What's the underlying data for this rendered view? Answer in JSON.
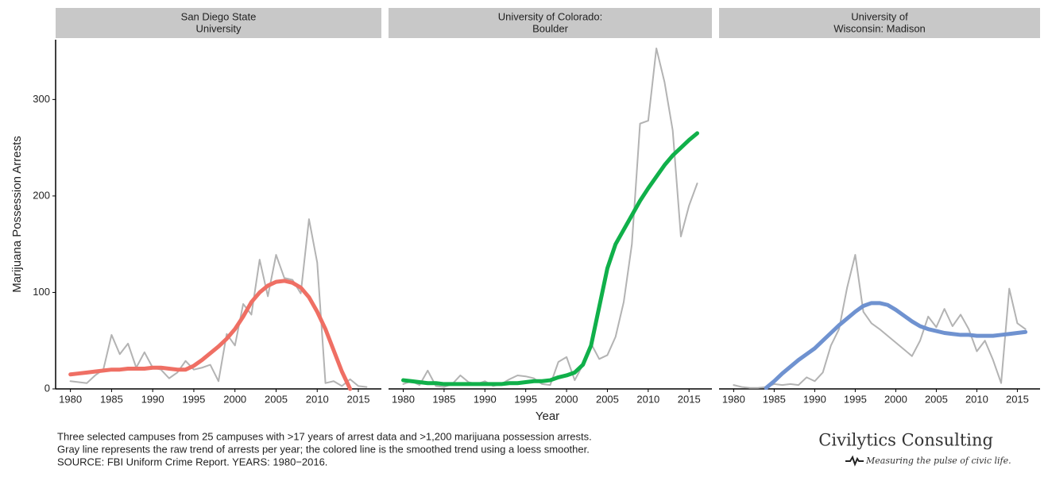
{
  "chart_data": [
    {
      "type": "line",
      "title": [
        "San Diego State",
        "University"
      ],
      "ylabel": "Marijuana Possession Arrests",
      "x": [
        1980,
        1981,
        1982,
        1983,
        1984,
        1985,
        1986,
        1987,
        1988,
        1989,
        1990,
        1991,
        1992,
        1993,
        1994,
        1995,
        1996,
        1997,
        1998,
        1999,
        2000,
        2001,
        2002,
        2003,
        2004,
        2005,
        2006,
        2007,
        2008,
        2009,
        2010,
        2011,
        2012,
        2013,
        2014,
        2015,
        2016
      ],
      "series": [
        {
          "color": "#b3b3b3",
          "values": [
            8,
            7,
            6,
            14,
            20,
            56,
            36,
            47,
            22,
            38,
            22,
            20,
            11,
            17,
            29,
            20,
            22,
            25,
            8,
            57,
            45,
            88,
            77,
            134,
            96,
            139,
            115,
            113,
            99,
            176,
            131,
            6,
            8,
            3,
            10,
            3,
            2
          ]
        },
        {
          "color": "#ef6f64",
          "values": [
            15,
            16,
            17,
            18,
            19,
            20,
            20,
            21,
            21,
            21,
            22,
            22,
            21,
            20,
            20,
            24,
            30,
            37,
            44,
            52,
            62,
            75,
            90,
            100,
            107,
            111,
            112,
            110,
            105,
            95,
            80,
            62,
            40,
            18,
            0,
            null,
            null
          ]
        }
      ],
      "xlim": [
        1978.2,
        2017.8
      ],
      "xticks": [
        1980,
        1985,
        1990,
        1995,
        2000,
        2005,
        2010,
        2015
      ],
      "ylim": [
        0,
        362
      ],
      "yticks": [
        0,
        100,
        200,
        300
      ]
    },
    {
      "type": "line",
      "title": [
        "University of Colorado:",
        "Boulder"
      ],
      "xlabel": "Year",
      "x": [
        1980,
        1981,
        1982,
        1983,
        1984,
        1985,
        1986,
        1987,
        1988,
        1989,
        1990,
        1991,
        1992,
        1993,
        1994,
        1995,
        1996,
        1997,
        1998,
        1999,
        2000,
        2001,
        2002,
        2003,
        2004,
        2005,
        2006,
        2007,
        2008,
        2009,
        2010,
        2011,
        2012,
        2013,
        2014,
        2015,
        2016
      ],
      "series": [
        {
          "color": "#b3b3b3",
          "values": [
            5,
            8,
            4,
            19,
            3,
            2,
            5,
            14,
            7,
            5,
            8,
            3,
            5,
            10,
            14,
            13,
            11,
            5,
            4,
            28,
            33,
            9,
            25,
            47,
            31,
            35,
            54,
            90,
            150,
            275,
            278,
            353,
            318,
            268,
            158,
            190,
            213
          ]
        },
        {
          "color": "#10b04a",
          "values": [
            9,
            8,
            7,
            6,
            6,
            5,
            5,
            5,
            5,
            5,
            5,
            5,
            5,
            6,
            6,
            7,
            8,
            8,
            9,
            12,
            14,
            17,
            25,
            45,
            85,
            125,
            150,
            165,
            180,
            195,
            208,
            220,
            232,
            242,
            250,
            258,
            265
          ]
        }
      ],
      "xlim": [
        1978.2,
        2017.8
      ],
      "xticks": [
        1980,
        1985,
        1990,
        1995,
        2000,
        2005,
        2010,
        2015
      ],
      "ylim": [
        0,
        362
      ]
    },
    {
      "type": "line",
      "title": [
        "University of",
        "Wisconsin: Madison"
      ],
      "x": [
        1980,
        1981,
        1982,
        1983,
        1984,
        1985,
        1986,
        1987,
        1988,
        1989,
        1990,
        1991,
        1992,
        1993,
        1994,
        1995,
        1996,
        1997,
        1998,
        1999,
        2000,
        2001,
        2002,
        2003,
        2004,
        2005,
        2006,
        2007,
        2008,
        2009,
        2010,
        2011,
        2012,
        2013,
        2014,
        2015,
        2016
      ],
      "series": [
        {
          "color": "#b3b3b3",
          "values": [
            4,
            2,
            1,
            1,
            2,
            5,
            4,
            5,
            4,
            12,
            8,
            17,
            45,
            62,
            105,
            139,
            80,
            68,
            62,
            55,
            48,
            41,
            34,
            50,
            75,
            64,
            83,
            65,
            77,
            62,
            39,
            50,
            30,
            6,
            104,
            68,
            62
          ]
        },
        {
          "color": "#6f92d0",
          "values": [
            null,
            null,
            null,
            null,
            1,
            8,
            16,
            23,
            30,
            36,
            42,
            50,
            58,
            66,
            73,
            80,
            86,
            89,
            89,
            87,
            82,
            76,
            70,
            65,
            62,
            60,
            58,
            57,
            56,
            56,
            55,
            55,
            55,
            56,
            57,
            58,
            59
          ]
        }
      ],
      "xlim": [
        1978.2,
        2017.8
      ],
      "xticks": [
        1980,
        1985,
        1990,
        1995,
        2000,
        2005,
        2010,
        2015
      ],
      "ylim": [
        0,
        362
      ]
    }
  ],
  "caption": [
    "Three selected campuses from 25 campuses with  >17 years of arrest data and >1,200 marijuana possession arrests.",
    "Gray line represents the raw trend of arrests per year; the colored line is the smoothed trend using a loess smoother.",
    "SOURCE:  FBI Uniform Crime Report. YEARS: 1980−2016."
  ],
  "brand": {
    "name": "Civilytics Consulting",
    "tagline": "Measuring the pulse of civic life."
  }
}
